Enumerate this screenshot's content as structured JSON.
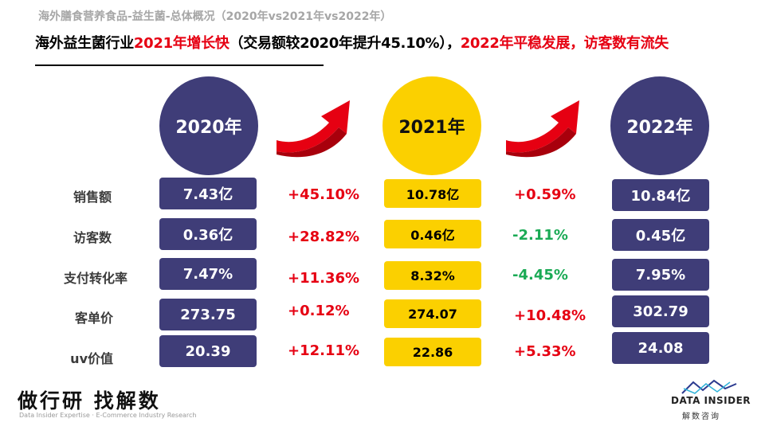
{
  "header": {
    "breadcrumb": "海外膳食营养食品-益生菌-总体概况（2020年vs2021年vs2022年）",
    "headline_part1": "海外益生菌行业",
    "headline_part2_red": "2021年增长快",
    "headline_part3": "（交易额较2020年提升45.10%），",
    "headline_part4_red": "2022年平稳发展，访客数有流失"
  },
  "years": [
    "2020年",
    "2021年",
    "2022年"
  ],
  "metrics": [
    {
      "label": "销售额",
      "v2020": "7.43亿",
      "change_21": "+45.10%",
      "v2021": "10.78亿",
      "change_22": "+0.59%",
      "v2022": "10.84亿"
    },
    {
      "label": "访客数",
      "v2020": "0.36亿",
      "change_21": "+28.82%",
      "v2021": "0.46亿",
      "change_22": "-2.11%",
      "v2022": "0.45亿"
    },
    {
      "label": "支付转化率",
      "v2020": "7.47%",
      "change_21": "+11.36%",
      "v2021": "8.32%",
      "change_22": "-4.45%",
      "v2022": "7.95%"
    },
    {
      "label": "客单价",
      "v2020": "273.75",
      "change_21": "+0.12%",
      "v2021": "274.07",
      "change_22": "+10.48%",
      "v2022": "302.79"
    },
    {
      "label": "uv价值",
      "v2020": "20.39",
      "change_21": "+12.11%",
      "v2021": "22.86",
      "change_22": "+5.33%",
      "v2022": "24.08"
    }
  ],
  "colors": {
    "navy": "#3f3d78",
    "gold": "#fbd000",
    "up": "#e60012",
    "down": "#1aaa55"
  },
  "footer": {
    "slogan": "做行研 找解数",
    "tagline": "Data Insider Expertise · E-Commerce Industry Research",
    "brand": "DATA INSIDER",
    "brand_cn": "解数咨询"
  }
}
